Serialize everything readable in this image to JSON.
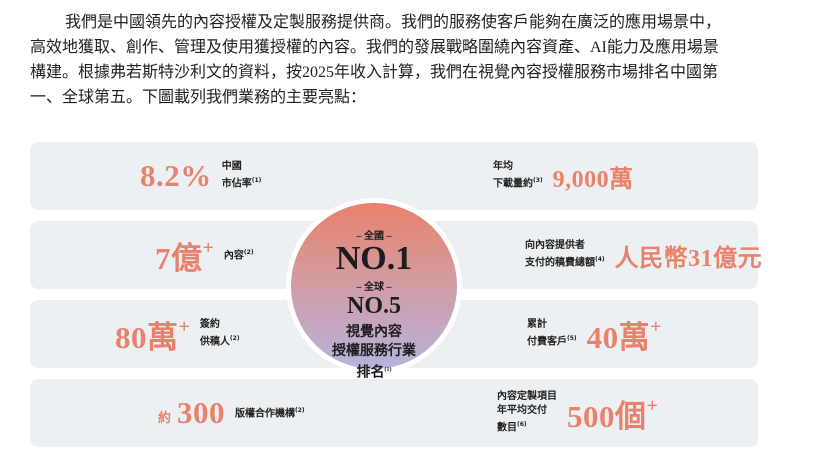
{
  "paragraph": [
    "我們是中國領先的內容授權及定製服務提供商。我們的服務使客戶能夠在廣泛的應用場景中，",
    "高效地獲取、創作、管理及使用獲授權的內容。我們的發展戰略圍繞內容資產、AI能力及應用場景",
    "構建。根據弗若斯特沙利文的資料，按2025年收入計算，我們在視覺內容授權服務市場排名中國第",
    "一、全球第五。下圖載列我們業務的主要亮點："
  ],
  "left_items": [
    {
      "value": "8.2%",
      "label": [
        "中國",
        "市佔率"
      ],
      "note": "(1)"
    },
    {
      "value": "7億",
      "suffix": "+",
      "label": [
        "內容"
      ],
      "note": "(2)"
    },
    {
      "value": "80萬",
      "suffix": "+",
      "label": [
        "簽約",
        "供稿人"
      ],
      "note": "(2)"
    },
    {
      "prefix": "約",
      "value": "300",
      "label": [
        "版權合作機構"
      ],
      "note": "(2)"
    }
  ],
  "right_items": [
    {
      "label": [
        "年均",
        "下載量約"
      ],
      "note": "(3)",
      "value": "9,000萬"
    },
    {
      "label": [
        "向內容提供者",
        "支付的稿費總額"
      ],
      "note": "(4)",
      "value": "人民幣31億元"
    },
    {
      "label": [
        "累計",
        "付費客戶"
      ],
      "note": "(5)",
      "value": "40萬",
      "suffix": "+"
    },
    {
      "label": [
        "內容定製項目",
        "年平均交付",
        "數目"
      ],
      "note": "(6)",
      "value": "500個",
      "suffix": "+"
    }
  ],
  "center": {
    "national_label": "– 全國 –",
    "national_rank": "NO.1",
    "global_label": "– 全球 –",
    "global_rank": "NO.5",
    "description": [
      "視覺內容",
      "授權服務行業",
      "排名"
    ],
    "note": "(1)"
  }
}
